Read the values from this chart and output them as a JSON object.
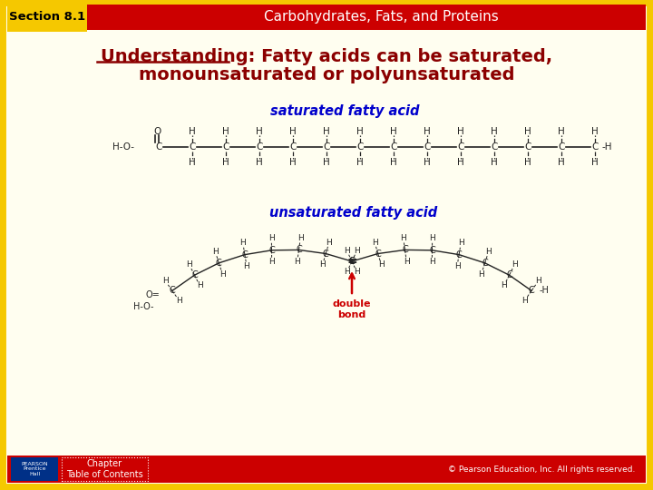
{
  "bg_color": "#fffef0",
  "border_color": "#f5c800",
  "header_bg": "#cc0000",
  "header_text": "Carbohydrates, Fats, and Proteins",
  "header_text_color": "#ffffff",
  "section_label": "Section 8.1",
  "section_label_bg": "#f5c800",
  "section_label_color": "#000000",
  "title_line1": "Understanding: Fatty acids can be saturated,",
  "title_line2": "monounsaturated or polyunsaturated",
  "title_color": "#8b0000",
  "saturated_label": "saturated fatty acid",
  "saturated_label_color": "#0000cc",
  "unsaturated_label": "unsaturated fatty acid",
  "unsaturated_label_color": "#0000cc",
  "double_bond_label": "double\nbond",
  "double_bond_color": "#cc0000",
  "footer_bg": "#cc0000",
  "footer_text": "© Pearson Education, Inc. All rights reserved.",
  "footer_text_color": "#ffffff",
  "chapter_toc_text": "Chapter\nTable of Contents",
  "chain_color": "#222222",
  "pearson_blue": "#003087"
}
